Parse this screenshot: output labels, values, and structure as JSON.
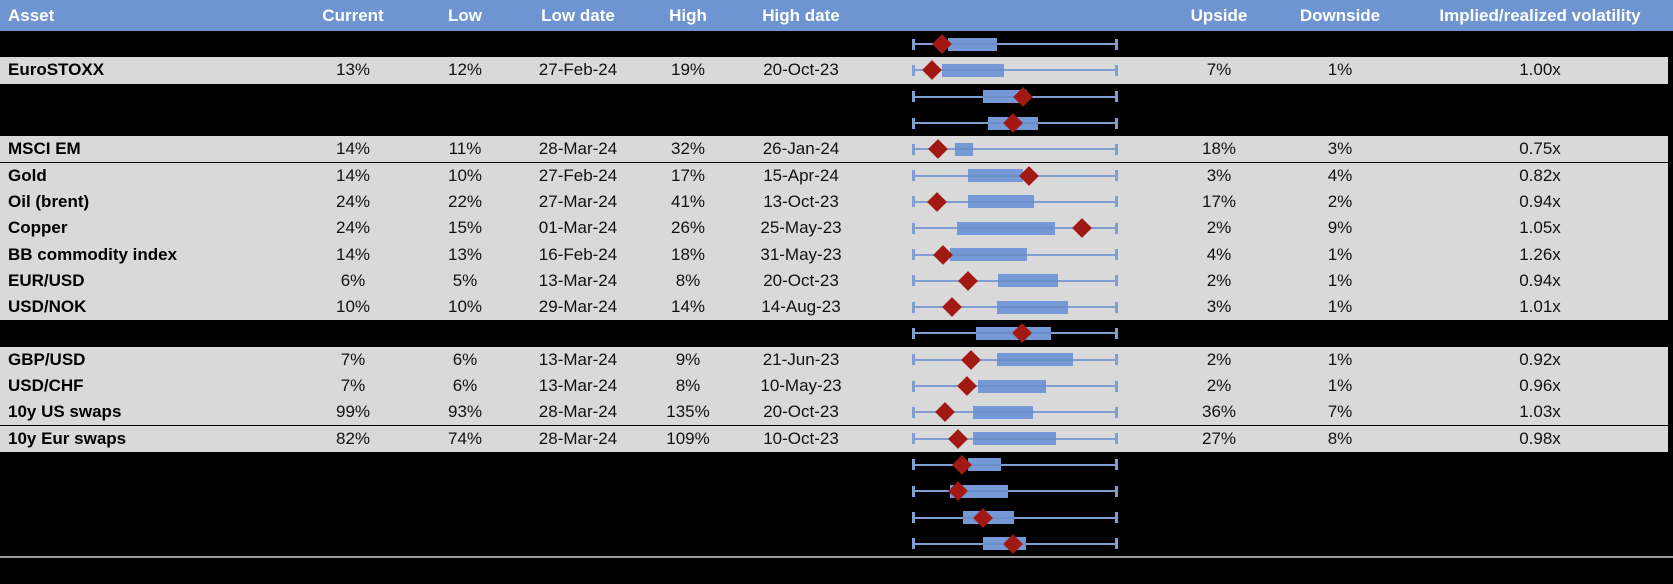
{
  "table": {
    "columns": {
      "asset": "Asset",
      "current": "Current",
      "low": "Low",
      "low_date": "Low date",
      "high": "High",
      "high_date": "High date",
      "upside": "Upside",
      "downside": "Downside",
      "implied_realized": "Implied/realized volatility"
    },
    "rows": [
      {
        "hidden": true,
        "asset": "",
        "current": "",
        "low": "",
        "low_date": "",
        "high": "",
        "high_date": "",
        "upside": "",
        "downside": "",
        "implied_realized": "",
        "box": {
          "b0": 0.175,
          "b1": 0.413,
          "d": 0.146
        }
      },
      {
        "hidden": false,
        "asset": "EuroSTOXX",
        "current": "13%",
        "low": "12%",
        "low_date": "27-Feb-24",
        "high": "19%",
        "high_date": "20-Oct-23",
        "upside": "7%",
        "downside": "1%",
        "implied_realized": "1.00x",
        "box": {
          "b0": 0.146,
          "b1": 0.447,
          "d": 0.097
        }
      },
      {
        "hidden": true,
        "asset": "",
        "current": "",
        "low": "",
        "low_date": "",
        "high": "",
        "high_date": "",
        "upside": "",
        "downside": "",
        "implied_realized": "",
        "box": {
          "b0": 0.345,
          "b1": 0.558,
          "d": 0.538
        }
      },
      {
        "hidden": true,
        "asset": "",
        "current": "",
        "low": "",
        "low_date": "",
        "high": "",
        "high_date": "",
        "upside": "",
        "downside": "",
        "implied_realized": "",
        "box": {
          "b0": 0.369,
          "b1": 0.612,
          "d": 0.49
        }
      },
      {
        "hidden": false,
        "asset": "MSCI EM",
        "current": "14%",
        "low": "11%",
        "low_date": "28-Mar-24",
        "high": "32%",
        "high_date": "26-Jan-24",
        "upside": "18%",
        "downside": "3%",
        "implied_realized": "0.75x",
        "box": {
          "b0": 0.209,
          "b1": 0.296,
          "d": 0.126
        }
      },
      {
        "hidden": false,
        "asset": "Gold",
        "current": "14%",
        "low": "10%",
        "low_date": "27-Feb-24",
        "high": "17%",
        "high_date": "15-Apr-24",
        "upside": "3%",
        "downside": "4%",
        "implied_realized": "0.82x",
        "box": {
          "b0": 0.272,
          "b1": 0.539,
          "d": 0.57
        }
      },
      {
        "hidden": false,
        "asset": "Oil (brent)",
        "current": "24%",
        "low": "22%",
        "low_date": "27-Mar-24",
        "high": "41%",
        "high_date": "13-Oct-23",
        "upside": "17%",
        "downside": "2%",
        "implied_realized": "0.94x",
        "box": {
          "b0": 0.272,
          "b1": 0.592,
          "d": 0.121
        }
      },
      {
        "hidden": false,
        "asset": "Copper",
        "current": "24%",
        "low": "15%",
        "low_date": "01-Mar-24",
        "high": "26%",
        "high_date": "25-May-23",
        "upside": "2%",
        "downside": "9%",
        "implied_realized": "1.05x",
        "box": {
          "b0": 0.218,
          "b1": 0.694,
          "d": 0.825
        }
      },
      {
        "hidden": false,
        "asset": "BB commodity index",
        "current": "14%",
        "low": "13%",
        "low_date": "16-Feb-24",
        "high": "18%",
        "high_date": "31-May-23",
        "upside": "4%",
        "downside": "1%",
        "implied_realized": "1.26x",
        "box": {
          "b0": 0.184,
          "b1": 0.558,
          "d": 0.15
        }
      },
      {
        "hidden": false,
        "asset": "EUR/USD",
        "current": "6%",
        "low": "5%",
        "low_date": "13-Mar-24",
        "high": "8%",
        "high_date": "20-Oct-23",
        "upside": "2%",
        "downside": "1%",
        "implied_realized": "0.94x",
        "box": {
          "b0": 0.417,
          "b1": 0.709,
          "d": 0.27
        }
      },
      {
        "hidden": false,
        "asset": "USD/NOK",
        "current": "10%",
        "low": "10%",
        "low_date": "29-Mar-24",
        "high": "14%",
        "high_date": "14-Aug-23",
        "upside": "3%",
        "downside": "1%",
        "implied_realized": "1.01x",
        "box": {
          "b0": 0.413,
          "b1": 0.757,
          "d": 0.194
        }
      },
      {
        "hidden": true,
        "asset": "",
        "current": "",
        "low": "",
        "low_date": "",
        "high": "",
        "high_date": "",
        "upside": "",
        "downside": "",
        "implied_realized": "",
        "box": {
          "b0": 0.311,
          "b1": 0.675,
          "d": 0.534
        }
      },
      {
        "hidden": false,
        "asset": "GBP/USD",
        "current": "7%",
        "low": "6%",
        "low_date": "13-Mar-24",
        "high": "9%",
        "high_date": "21-Jun-23",
        "upside": "2%",
        "downside": "1%",
        "implied_realized": "0.92x",
        "box": {
          "b0": 0.413,
          "b1": 0.781,
          "d": 0.286
        }
      },
      {
        "hidden": false,
        "asset": "USD/CHF",
        "current": "7%",
        "low": "6%",
        "low_date": "13-Mar-24",
        "high": "8%",
        "high_date": "10-May-23",
        "upside": "2%",
        "downside": "1%",
        "implied_realized": "0.96x",
        "box": {
          "b0": 0.32,
          "b1": 0.65,
          "d": 0.267
        }
      },
      {
        "hidden": false,
        "asset": "10y US swaps",
        "current": "99%",
        "low": "93%",
        "low_date": "28-Mar-24",
        "high": "135%",
        "high_date": "20-Oct-23",
        "upside": "36%",
        "downside": "7%",
        "implied_realized": "1.03x",
        "box": {
          "b0": 0.296,
          "b1": 0.587,
          "d": 0.16
        }
      },
      {
        "hidden": false,
        "asset": "10y Eur swaps",
        "current": "82%",
        "low": "74%",
        "low_date": "28-Mar-24",
        "high": "109%",
        "high_date": "10-Oct-23",
        "upside": "27%",
        "downside": "8%",
        "implied_realized": "0.98x",
        "box": {
          "b0": 0.296,
          "b1": 0.699,
          "d": 0.223
        }
      },
      {
        "hidden": true,
        "asset": "",
        "current": "",
        "low": "",
        "low_date": "",
        "high": "",
        "high_date": "",
        "upside": "",
        "downside": "",
        "implied_realized": "",
        "box": {
          "b0": 0.272,
          "b1": 0.432,
          "d": 0.243
        }
      },
      {
        "hidden": true,
        "asset": "",
        "current": "",
        "low": "",
        "low_date": "",
        "high": "",
        "high_date": "",
        "upside": "",
        "downside": "",
        "implied_realized": "",
        "box": {
          "b0": 0.184,
          "b1": 0.466,
          "d": 0.223
        }
      },
      {
        "hidden": true,
        "asset": "",
        "current": "",
        "low": "",
        "low_date": "",
        "high": "",
        "high_date": "",
        "upside": "",
        "downside": "",
        "implied_realized": "",
        "box": {
          "b0": 0.248,
          "b1": 0.495,
          "d": 0.345
        }
      },
      {
        "hidden": true,
        "asset": "",
        "current": "",
        "low": "",
        "low_date": "",
        "high": "",
        "high_date": "",
        "upside": "",
        "downside": "",
        "implied_realized": "",
        "box": {
          "b0": 0.345,
          "b1": 0.553,
          "d": 0.49
        }
      }
    ]
  },
  "colors": {
    "header_bg": "#6e94d1",
    "header_text": "#ffffff",
    "row_bg": "#d9d9d9",
    "background": "#000000",
    "box_fill": "#7499d6",
    "whisker": "#7f9fd4",
    "boxline": "#6c8fc7",
    "marker": "#a11912",
    "separator": "#9b9b9b",
    "cell_text": "#000000"
  },
  "chart_data": {
    "type": "table",
    "columns": [
      "Asset",
      "Current",
      "Low",
      "Low date",
      "High",
      "High date",
      "Upside",
      "Downside",
      "Implied/realized volatility"
    ],
    "rows": [
      [
        "EuroSTOXX",
        "13%",
        "12%",
        "27-Feb-24",
        "19%",
        "20-Oct-23",
        "7%",
        "1%",
        "1.00x"
      ],
      [
        "MSCI EM",
        "14%",
        "11%",
        "28-Mar-24",
        "32%",
        "26-Jan-24",
        "18%",
        "3%",
        "0.75x"
      ],
      [
        "Gold",
        "14%",
        "10%",
        "27-Feb-24",
        "17%",
        "15-Apr-24",
        "3%",
        "4%",
        "0.82x"
      ],
      [
        "Oil (brent)",
        "24%",
        "22%",
        "27-Mar-24",
        "41%",
        "13-Oct-23",
        "17%",
        "2%",
        "0.94x"
      ],
      [
        "Copper",
        "24%",
        "15%",
        "01-Mar-24",
        "26%",
        "25-May-23",
        "2%",
        "9%",
        "1.05x"
      ],
      [
        "BB commodity index",
        "14%",
        "13%",
        "16-Feb-24",
        "18%",
        "31-May-23",
        "4%",
        "1%",
        "1.26x"
      ],
      [
        "EUR/USD",
        "6%",
        "5%",
        "13-Mar-24",
        "8%",
        "20-Oct-23",
        "2%",
        "1%",
        "0.94x"
      ],
      [
        "USD/NOK",
        "10%",
        "10%",
        "29-Mar-24",
        "14%",
        "14-Aug-23",
        "3%",
        "1%",
        "1.01x"
      ],
      [
        "GBP/USD",
        "7%",
        "6%",
        "13-Mar-24",
        "9%",
        "21-Jun-23",
        "2%",
        "1%",
        "0.92x"
      ],
      [
        "USD/CHF",
        "7%",
        "6%",
        "13-Mar-24",
        "8%",
        "10-May-23",
        "2%",
        "1%",
        "0.96x"
      ],
      [
        "10y US swaps",
        "99%",
        "93%",
        "28-Mar-24",
        "135%",
        "20-Oct-23",
        "36%",
        "7%",
        "1.03x"
      ],
      [
        "10y Eur swaps",
        "82%",
        "74%",
        "28-Mar-24",
        "109%",
        "10-Oct-23",
        "27%",
        "8%",
        "0.98x"
      ]
    ],
    "box_plots": {
      "description": "Horizontal box-whisker per row; whisker spans Low to High (normalized 0-1), box = interquartile band, diamond marker = Current",
      "whisker_range_normalized": [
        0,
        1
      ],
      "per_row_normalized": [
        {
          "asset": "",
          "box": [
            0.175,
            0.413
          ],
          "marker": 0.146
        },
        {
          "asset": "EuroSTOXX",
          "box": [
            0.146,
            0.447
          ],
          "marker": 0.097
        },
        {
          "asset": "",
          "box": [
            0.345,
            0.558
          ],
          "marker": 0.538
        },
        {
          "asset": "",
          "box": [
            0.369,
            0.612
          ],
          "marker": 0.49
        },
        {
          "asset": "MSCI EM",
          "box": [
            0.209,
            0.296
          ],
          "marker": 0.126
        },
        {
          "asset": "Gold",
          "box": [
            0.272,
            0.539
          ],
          "marker": 0.57
        },
        {
          "asset": "Oil (brent)",
          "box": [
            0.272,
            0.592
          ],
          "marker": 0.121
        },
        {
          "asset": "Copper",
          "box": [
            0.218,
            0.694
          ],
          "marker": 0.825
        },
        {
          "asset": "BB commodity index",
          "box": [
            0.184,
            0.558
          ],
          "marker": 0.15
        },
        {
          "asset": "EUR/USD",
          "box": [
            0.417,
            0.709
          ],
          "marker": 0.27
        },
        {
          "asset": "USD/NOK",
          "box": [
            0.413,
            0.757
          ],
          "marker": 0.194
        },
        {
          "asset": "",
          "box": [
            0.311,
            0.675
          ],
          "marker": 0.534
        },
        {
          "asset": "GBP/USD",
          "box": [
            0.413,
            0.781
          ],
          "marker": 0.286
        },
        {
          "asset": "USD/CHF",
          "box": [
            0.32,
            0.65
          ],
          "marker": 0.267
        },
        {
          "asset": "10y US swaps",
          "box": [
            0.296,
            0.587
          ],
          "marker": 0.16
        },
        {
          "asset": "10y Eur swaps",
          "box": [
            0.296,
            0.699
          ],
          "marker": 0.223
        },
        {
          "asset": "",
          "box": [
            0.272,
            0.432
          ],
          "marker": 0.243
        },
        {
          "asset": "",
          "box": [
            0.184,
            0.466
          ],
          "marker": 0.223
        },
        {
          "asset": "",
          "box": [
            0.248,
            0.495
          ],
          "marker": 0.345
        },
        {
          "asset": "",
          "box": [
            0.345,
            0.553
          ],
          "marker": 0.49
        }
      ]
    }
  }
}
